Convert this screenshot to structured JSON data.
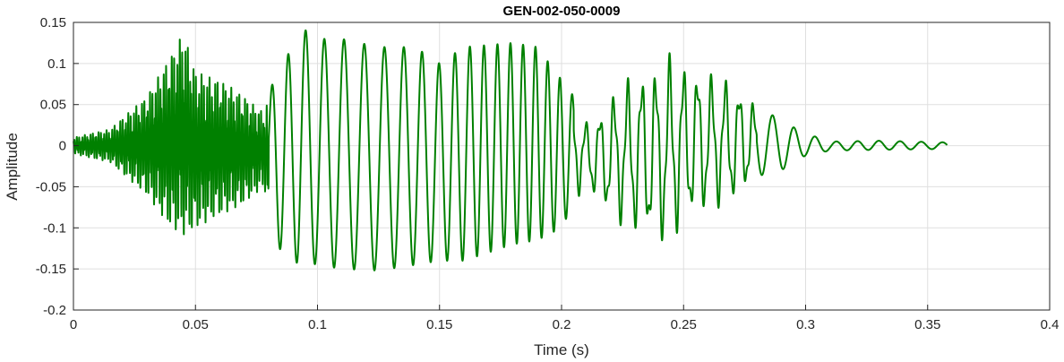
{
  "chart_data": {
    "type": "line",
    "title": "GEN-002-050-0009",
    "xlabel": "Time (s)",
    "ylabel": "Amplitude",
    "xlim": [
      0,
      0.4
    ],
    "ylim": [
      -0.2,
      0.15
    ],
    "xticks": [
      0,
      0.05,
      0.1,
      0.15,
      0.2,
      0.25,
      0.3,
      0.35,
      0.4
    ],
    "yticks": [
      -0.2,
      -0.15,
      -0.1,
      -0.05,
      0,
      0.05,
      0.1,
      0.15
    ],
    "xtick_labels": [
      "0",
      "0.05",
      "0.1",
      "0.15",
      "0.2",
      "0.25",
      "0.3",
      "0.35",
      "0.4"
    ],
    "ytick_labels": [
      "-0.2",
      "-0.15",
      "-0.1",
      "-0.05",
      "0",
      "0.05",
      "0.1",
      "0.15"
    ],
    "grid": true,
    "line_color": "#008000",
    "signal_end_s": 0.358,
    "envelope": {
      "t": [
        0,
        0.015,
        0.03,
        0.04,
        0.045,
        0.05,
        0.06,
        0.07,
        0.078,
        0.083,
        0.09,
        0.093,
        0.1,
        0.11,
        0.125,
        0.14,
        0.15,
        0.16,
        0.18,
        0.19,
        0.2,
        0.205,
        0.21,
        0.215,
        0.225,
        0.24,
        0.245,
        0.25,
        0.26,
        0.27,
        0.28,
        0.285,
        0.29,
        0.3,
        0.31,
        0.33,
        0.358
      ],
      "pos": [
        0.01,
        0.02,
        0.06,
        0.11,
        0.14,
        0.09,
        0.08,
        0.06,
        0.04,
        0.09,
        0.12,
        0.145,
        0.13,
        0.13,
        0.12,
        0.12,
        0.1,
        0.12,
        0.125,
        0.12,
        0.08,
        0.06,
        0.03,
        0.04,
        0.08,
        0.1,
        0.115,
        0.1,
        0.09,
        0.08,
        0.05,
        0.04,
        0.03,
        0.015,
        0.005,
        0.006,
        0.004
      ],
      "neg": [
        -0.01,
        -0.02,
        -0.06,
        -0.1,
        -0.11,
        -0.1,
        -0.085,
        -0.07,
        -0.05,
        -0.12,
        -0.145,
        -0.14,
        -0.145,
        -0.15,
        -0.152,
        -0.145,
        -0.14,
        -0.14,
        -0.12,
        -0.115,
        -0.1,
        -0.07,
        -0.05,
        -0.07,
        -0.1,
        -0.12,
        -0.12,
        -0.095,
        -0.08,
        -0.07,
        -0.04,
        -0.03,
        -0.03,
        -0.012,
        -0.006,
        -0.005,
        -0.004
      ]
    }
  }
}
